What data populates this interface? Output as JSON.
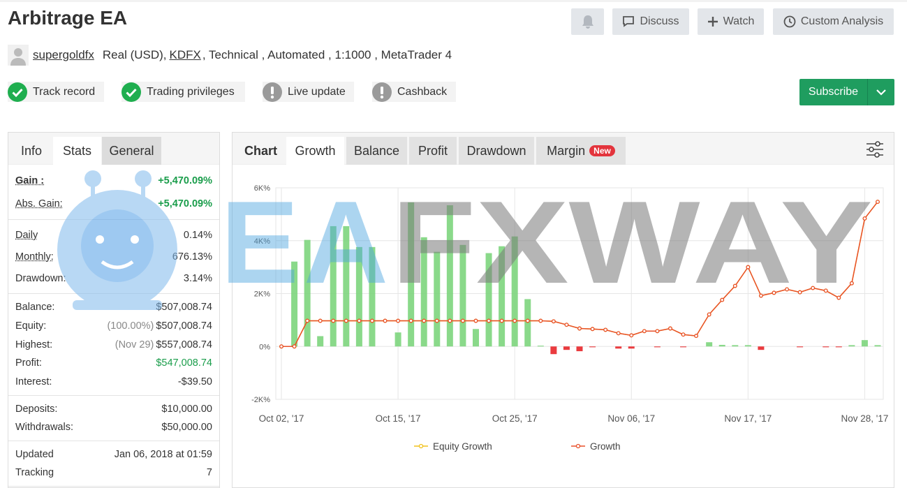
{
  "header": {
    "title": "Arbitrage EA",
    "buttons": [
      "Discuss",
      "Watch",
      "Custom Analysis"
    ],
    "user": "supergoldfx",
    "account": "Real (USD),",
    "broker": "KDFX",
    "details": ", Technical , Automated , 1:1000 , MetaTrader 4",
    "badges": [
      {
        "label": "Track record",
        "status": "ok"
      },
      {
        "label": "Trading privileges",
        "status": "ok"
      },
      {
        "label": "Live update",
        "status": "warn"
      },
      {
        "label": "Cashback",
        "status": "warn"
      }
    ],
    "subscribe": "Subscribe"
  },
  "stats": {
    "tabs": [
      "Info",
      "Stats",
      "General"
    ],
    "groups": [
      [
        {
          "label": "Gain :",
          "value": "+5,470.09%",
          "color": "#1a9d4b"
        },
        {
          "label": "Abs. Gain:",
          "value": "+5,470.09%",
          "color": "#1a9d4b"
        }
      ],
      [
        {
          "label": "Daily",
          "value": "0.14%"
        },
        {
          "label": "Monthly:",
          "value": "676.13%"
        },
        {
          "label": "Drawdown:",
          "value": "3.14%"
        }
      ],
      [
        {
          "label": "Balance:",
          "value": "$507,008.74"
        },
        {
          "label": "Equity:",
          "note": "(100.00%)",
          "value": "$507,008.74"
        },
        {
          "label": "Highest:",
          "note": "(Nov 29)",
          "value": "$557,008.74"
        },
        {
          "label": "Profit:",
          "value": "$547,008.74",
          "color": "#1a9d4b"
        },
        {
          "label": "Interest:",
          "value": "-$39.50"
        }
      ],
      [
        {
          "label": "Deposits:",
          "value": "$10,000.00"
        },
        {
          "label": "Withdrawals:",
          "value": "$50,000.00"
        }
      ],
      [
        {
          "label": "Updated",
          "value": "Jan 06, 2018 at 01:59"
        },
        {
          "label": "Tracking",
          "value": "7"
        }
      ]
    ]
  },
  "chart_panel": {
    "label": "Chart",
    "tabs": [
      "Growth",
      "Balance",
      "Profit",
      "Drawdown",
      "Margin"
    ],
    "new_badge": "New"
  },
  "chart_data": {
    "type": "line",
    "categories": [
      "Oct 02, '17",
      null,
      null,
      null,
      null,
      null,
      null,
      null,
      null,
      "Oct 15, '17",
      null,
      null,
      null,
      null,
      null,
      null,
      null,
      null,
      "Oct 25, '17",
      null,
      null,
      null,
      null,
      null,
      null,
      null,
      null,
      "Nov 06, '17",
      null,
      null,
      null,
      null,
      null,
      null,
      null,
      null,
      "Nov 17, '17",
      null,
      null,
      null,
      null,
      null,
      null,
      null,
      null,
      "Nov 28, '17",
      null
    ],
    "series": [
      {
        "name": "Equity Growth",
        "color": "#f2c21b",
        "values": [
          0,
          0,
          970,
          970,
          970,
          970,
          970,
          970,
          970,
          970,
          970,
          970,
          970,
          970,
          970,
          970,
          970,
          970,
          970,
          970,
          970,
          950,
          820,
          680,
          660,
          630,
          500,
          420,
          580,
          580,
          680,
          450,
          400,
          1210,
          1760,
          2290,
          3000,
          1920,
          2030,
          2160,
          2050,
          2210,
          2110,
          1840,
          2390,
          4840,
          5470
        ]
      },
      {
        "name": "Growth",
        "color": "#e8502a",
        "values": [
          0,
          0,
          970,
          970,
          970,
          970,
          970,
          970,
          970,
          970,
          970,
          970,
          970,
          970,
          970,
          970,
          970,
          970,
          970,
          970,
          970,
          950,
          820,
          680,
          660,
          630,
          500,
          420,
          580,
          580,
          680,
          450,
          400,
          1210,
          1760,
          2290,
          3000,
          1920,
          2030,
          2160,
          2050,
          2210,
          2110,
          1840,
          2390,
          4840,
          5470
        ]
      }
    ],
    "bars": {
      "color": "#76d276",
      "negative_color": "#ea3b3f",
      "values": [
        0,
        3210,
        4030,
        390,
        4550,
        4550,
        3760,
        3760,
        0,
        530,
        5450,
        4130,
        3580,
        5340,
        3840,
        660,
        3530,
        3790,
        4160,
        1790,
        30,
        -290,
        -130,
        -180,
        -30,
        0,
        -80,
        -80,
        0,
        -30,
        0,
        -30,
        0,
        160,
        60,
        50,
        50,
        -130,
        0,
        0,
        -30,
        0,
        -30,
        -30,
        50,
        240,
        50
      ]
    },
    "ylim": [
      -2000,
      6000
    ],
    "yticks": [
      {
        "value": -2000,
        "label": "-2K%"
      },
      {
        "value": 0,
        "label": "0%"
      },
      {
        "value": 2000,
        "label": "2K%"
      },
      {
        "value": 4000,
        "label": "4K%"
      },
      {
        "value": 6000,
        "label": "6K%"
      }
    ],
    "grid": true
  },
  "watermark": {
    "left": "EA",
    "right": "FXWAY"
  }
}
